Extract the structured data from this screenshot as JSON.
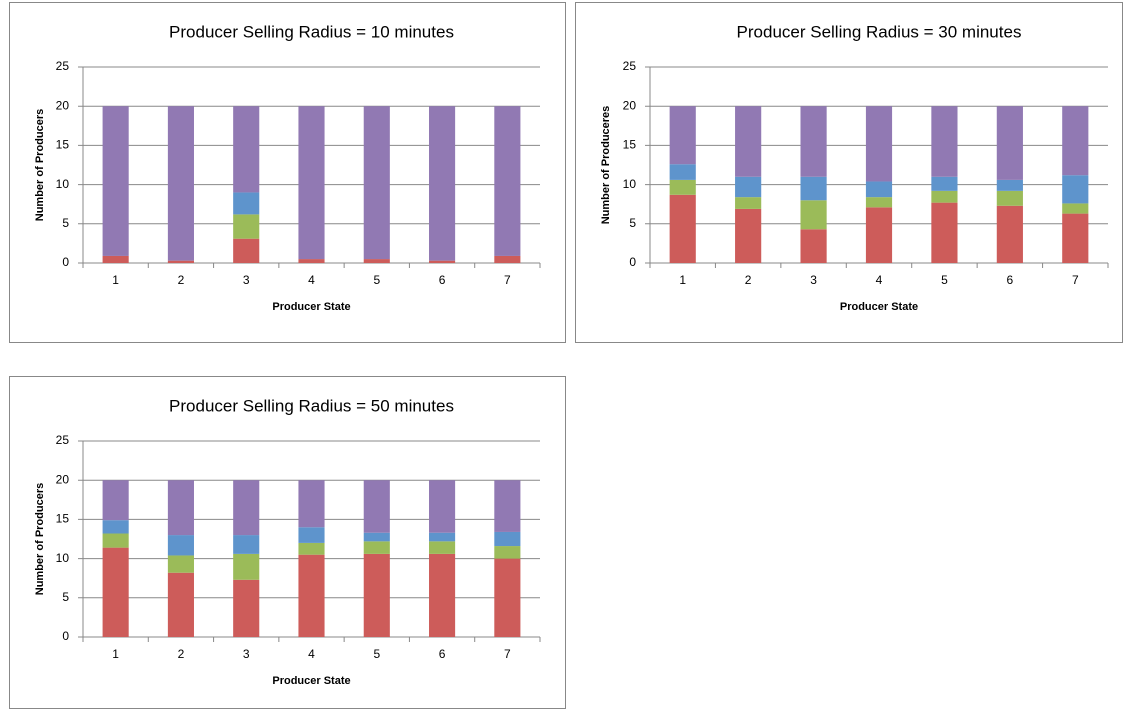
{
  "chart_data": [
    {
      "type": "bar",
      "stacked": true,
      "title": "Producer Selling Radius = 10 minutes",
      "xlabel": "Producer State",
      "ylabel": "Number of Producers",
      "categories": [
        "1",
        "2",
        "3",
        "4",
        "5",
        "6",
        "7"
      ],
      "series": [
        {
          "color": "#cd5c5a",
          "values": [
            0.9,
            0.3,
            3.1,
            0.5,
            0.5,
            0.3,
            0.9
          ]
        },
        {
          "color": "#9bbb59",
          "values": [
            0,
            0,
            3.1,
            0,
            0,
            0,
            0
          ]
        },
        {
          "color": "#5e94cc",
          "values": [
            0,
            0,
            2.8,
            0,
            0,
            0,
            0
          ]
        },
        {
          "color": "#9179b3",
          "values": [
            19.1,
            19.7,
            11.0,
            19.5,
            19.5,
            19.7,
            19.1
          ]
        }
      ],
      "ylim": [
        0,
        25
      ],
      "yticks": [
        0,
        5,
        10,
        15,
        20,
        25
      ],
      "grid": true
    },
    {
      "type": "bar",
      "stacked": true,
      "title": "Producer Selling Radius = 30 minutes",
      "xlabel": "Producer State",
      "ylabel": "Number of Produceres",
      "categories": [
        "1",
        "2",
        "3",
        "4",
        "5",
        "6",
        "7"
      ],
      "series": [
        {
          "color": "#cd5c5a",
          "values": [
            8.7,
            6.9,
            4.3,
            7.1,
            7.7,
            7.3,
            6.3
          ]
        },
        {
          "color": "#9bbb59",
          "values": [
            1.9,
            1.5,
            3.7,
            1.3,
            1.5,
            1.9,
            1.3
          ]
        },
        {
          "color": "#5e94cc",
          "values": [
            2.0,
            2.6,
            3.0,
            2.0,
            1.8,
            1.4,
            3.6
          ]
        },
        {
          "color": "#9179b3",
          "values": [
            7.4,
            9.0,
            9.0,
            9.6,
            9.0,
            9.4,
            8.8
          ]
        }
      ],
      "ylim": [
        0,
        25
      ],
      "yticks": [
        0,
        5,
        10,
        15,
        20,
        25
      ],
      "grid": true
    },
    {
      "type": "bar",
      "stacked": true,
      "title": "Producer Selling Radius = 50 minutes",
      "xlabel": "Producer State",
      "ylabel": "Number of Producers",
      "categories": [
        "1",
        "2",
        "3",
        "4",
        "5",
        "6",
        "7"
      ],
      "series": [
        {
          "color": "#cd5c5a",
          "values": [
            11.4,
            8.2,
            7.3,
            10.5,
            10.6,
            10.6,
            10.0
          ]
        },
        {
          "color": "#9bbb59",
          "values": [
            1.8,
            2.2,
            3.3,
            1.5,
            1.6,
            1.6,
            1.6
          ]
        },
        {
          "color": "#5e94cc",
          "values": [
            1.7,
            2.6,
            2.4,
            2.0,
            1.1,
            1.1,
            1.8
          ]
        },
        {
          "color": "#9179b3",
          "values": [
            5.1,
            7.0,
            7.0,
            6.0,
            6.7,
            6.7,
            6.6
          ]
        }
      ],
      "ylim": [
        0,
        25
      ],
      "yticks": [
        0,
        5,
        10,
        15,
        20,
        25
      ],
      "grid": true
    }
  ]
}
